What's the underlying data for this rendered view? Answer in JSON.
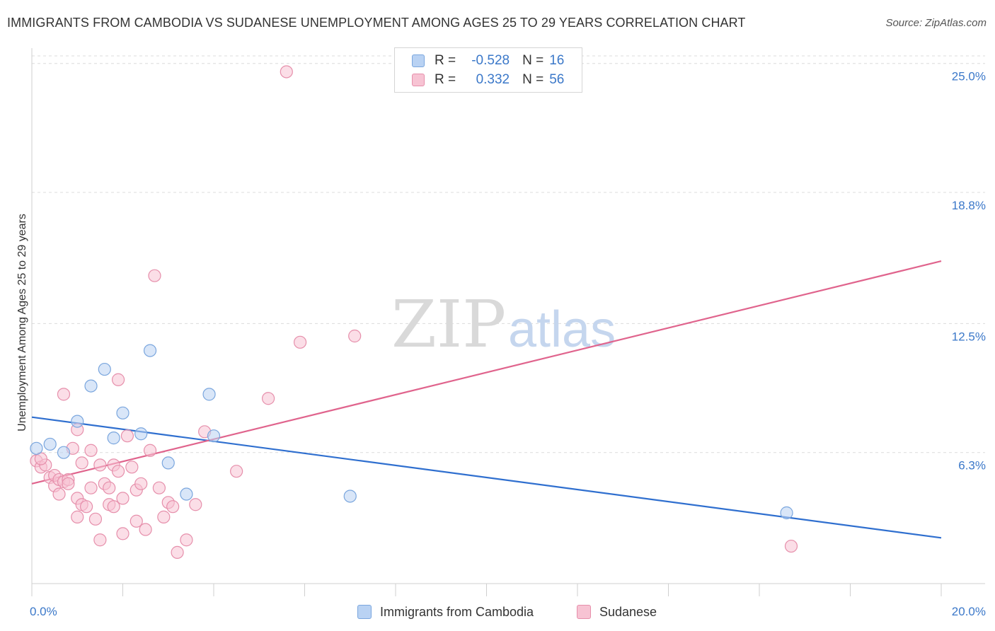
{
  "title": "IMMIGRANTS FROM CAMBODIA VS SUDANESE UNEMPLOYMENT AMONG AGES 25 TO 29 YEARS CORRELATION CHART",
  "source": "Source: ZipAtlas.com",
  "watermark": {
    "zip": "ZIP",
    "atlas": "atlas"
  },
  "legend": {
    "r_label": "R =",
    "n_label": "N =",
    "rows": [
      {
        "r": "-0.528",
        "n": "16"
      },
      {
        "r": "0.332",
        "n": "56"
      }
    ]
  },
  "colors": {
    "cambodia_fill": "#b9d2f3",
    "cambodia_stroke": "#7aa6de",
    "cambodia_line": "#2f6fcf",
    "sudanese_fill": "#f7c3d3",
    "sudanese_stroke": "#e68fab",
    "sudanese_line": "#e0648d",
    "tick_text": "#3b78c9",
    "grid": "#dcdcdc"
  },
  "chart_data": {
    "type": "scatter",
    "title": "IMMIGRANTS FROM CAMBODIA VS SUDANESE UNEMPLOYMENT AMONG AGES 25 TO 29 YEARS CORRELATION CHART",
    "xlabel": "",
    "ylabel": "Unemployment Among Ages 25 to 29 years",
    "xlim": [
      0,
      20
    ],
    "ylim": [
      0,
      25.5
    ],
    "x_ticks": [
      {
        "value": 0,
        "label": "0.0%"
      },
      {
        "value": 20,
        "label": "20.0%"
      }
    ],
    "y_ticks": [
      {
        "value": 6.3,
        "label": "6.3%"
      },
      {
        "value": 12.5,
        "label": "12.5%"
      },
      {
        "value": 18.8,
        "label": "18.8%"
      },
      {
        "value": 25.0,
        "label": "25.0%"
      }
    ],
    "grid": true,
    "series": [
      {
        "name": "Immigrants from Cambodia",
        "color": "#b9d2f3",
        "points": [
          [
            0.1,
            6.5
          ],
          [
            0.4,
            6.7
          ],
          [
            0.7,
            6.3
          ],
          [
            1.0,
            7.8
          ],
          [
            1.3,
            9.5
          ],
          [
            1.6,
            10.3
          ],
          [
            1.8,
            7.0
          ],
          [
            2.0,
            8.2
          ],
          [
            2.4,
            7.2
          ],
          [
            2.6,
            11.2
          ],
          [
            3.0,
            5.8
          ],
          [
            3.4,
            4.3
          ],
          [
            3.9,
            9.1
          ],
          [
            4.0,
            7.1
          ],
          [
            7.0,
            4.2
          ],
          [
            16.6,
            3.4
          ]
        ],
        "trend": {
          "x": [
            0,
            20
          ],
          "y": [
            8.0,
            2.2
          ]
        }
      },
      {
        "name": "Sudanese",
        "color": "#f7c3d3",
        "points": [
          [
            0.1,
            5.9
          ],
          [
            0.2,
            5.6
          ],
          [
            0.3,
            5.7
          ],
          [
            0.4,
            5.1
          ],
          [
            0.5,
            4.7
          ],
          [
            0.5,
            5.2
          ],
          [
            0.6,
            4.3
          ],
          [
            0.6,
            5.0
          ],
          [
            0.7,
            9.1
          ],
          [
            0.7,
            4.9
          ],
          [
            0.8,
            5.0
          ],
          [
            0.8,
            4.8
          ],
          [
            0.9,
            6.5
          ],
          [
            1.0,
            3.2
          ],
          [
            1.0,
            7.4
          ],
          [
            1.0,
            4.1
          ],
          [
            1.1,
            5.8
          ],
          [
            1.1,
            3.8
          ],
          [
            1.2,
            3.7
          ],
          [
            1.3,
            6.4
          ],
          [
            1.3,
            4.6
          ],
          [
            1.4,
            3.1
          ],
          [
            1.5,
            5.7
          ],
          [
            1.5,
            2.1
          ],
          [
            1.6,
            4.8
          ],
          [
            1.7,
            3.8
          ],
          [
            1.7,
            4.6
          ],
          [
            1.8,
            5.7
          ],
          [
            1.8,
            3.7
          ],
          [
            1.9,
            9.8
          ],
          [
            1.9,
            5.4
          ],
          [
            2.0,
            4.1
          ],
          [
            2.0,
            2.4
          ],
          [
            2.1,
            7.1
          ],
          [
            2.2,
            5.6
          ],
          [
            2.3,
            4.5
          ],
          [
            2.3,
            3.0
          ],
          [
            2.4,
            4.8
          ],
          [
            2.5,
            2.6
          ],
          [
            2.6,
            6.4
          ],
          [
            2.7,
            14.8
          ],
          [
            2.8,
            4.6
          ],
          [
            2.9,
            3.2
          ],
          [
            3.0,
            3.9
          ],
          [
            3.1,
            3.7
          ],
          [
            3.2,
            1.5
          ],
          [
            3.4,
            2.1
          ],
          [
            3.6,
            3.8
          ],
          [
            3.8,
            7.3
          ],
          [
            4.5,
            5.4
          ],
          [
            5.2,
            8.9
          ],
          [
            5.6,
            24.6
          ],
          [
            5.9,
            11.6
          ],
          [
            7.1,
            11.9
          ],
          [
            16.7,
            1.8
          ],
          [
            0.2,
            6.0
          ]
        ],
        "trend": {
          "x": [
            0,
            20
          ],
          "y": [
            4.8,
            15.5
          ]
        }
      }
    ]
  },
  "bottom_legend": [
    {
      "label": "Immigrants from Cambodia"
    },
    {
      "label": "Sudanese"
    }
  ]
}
